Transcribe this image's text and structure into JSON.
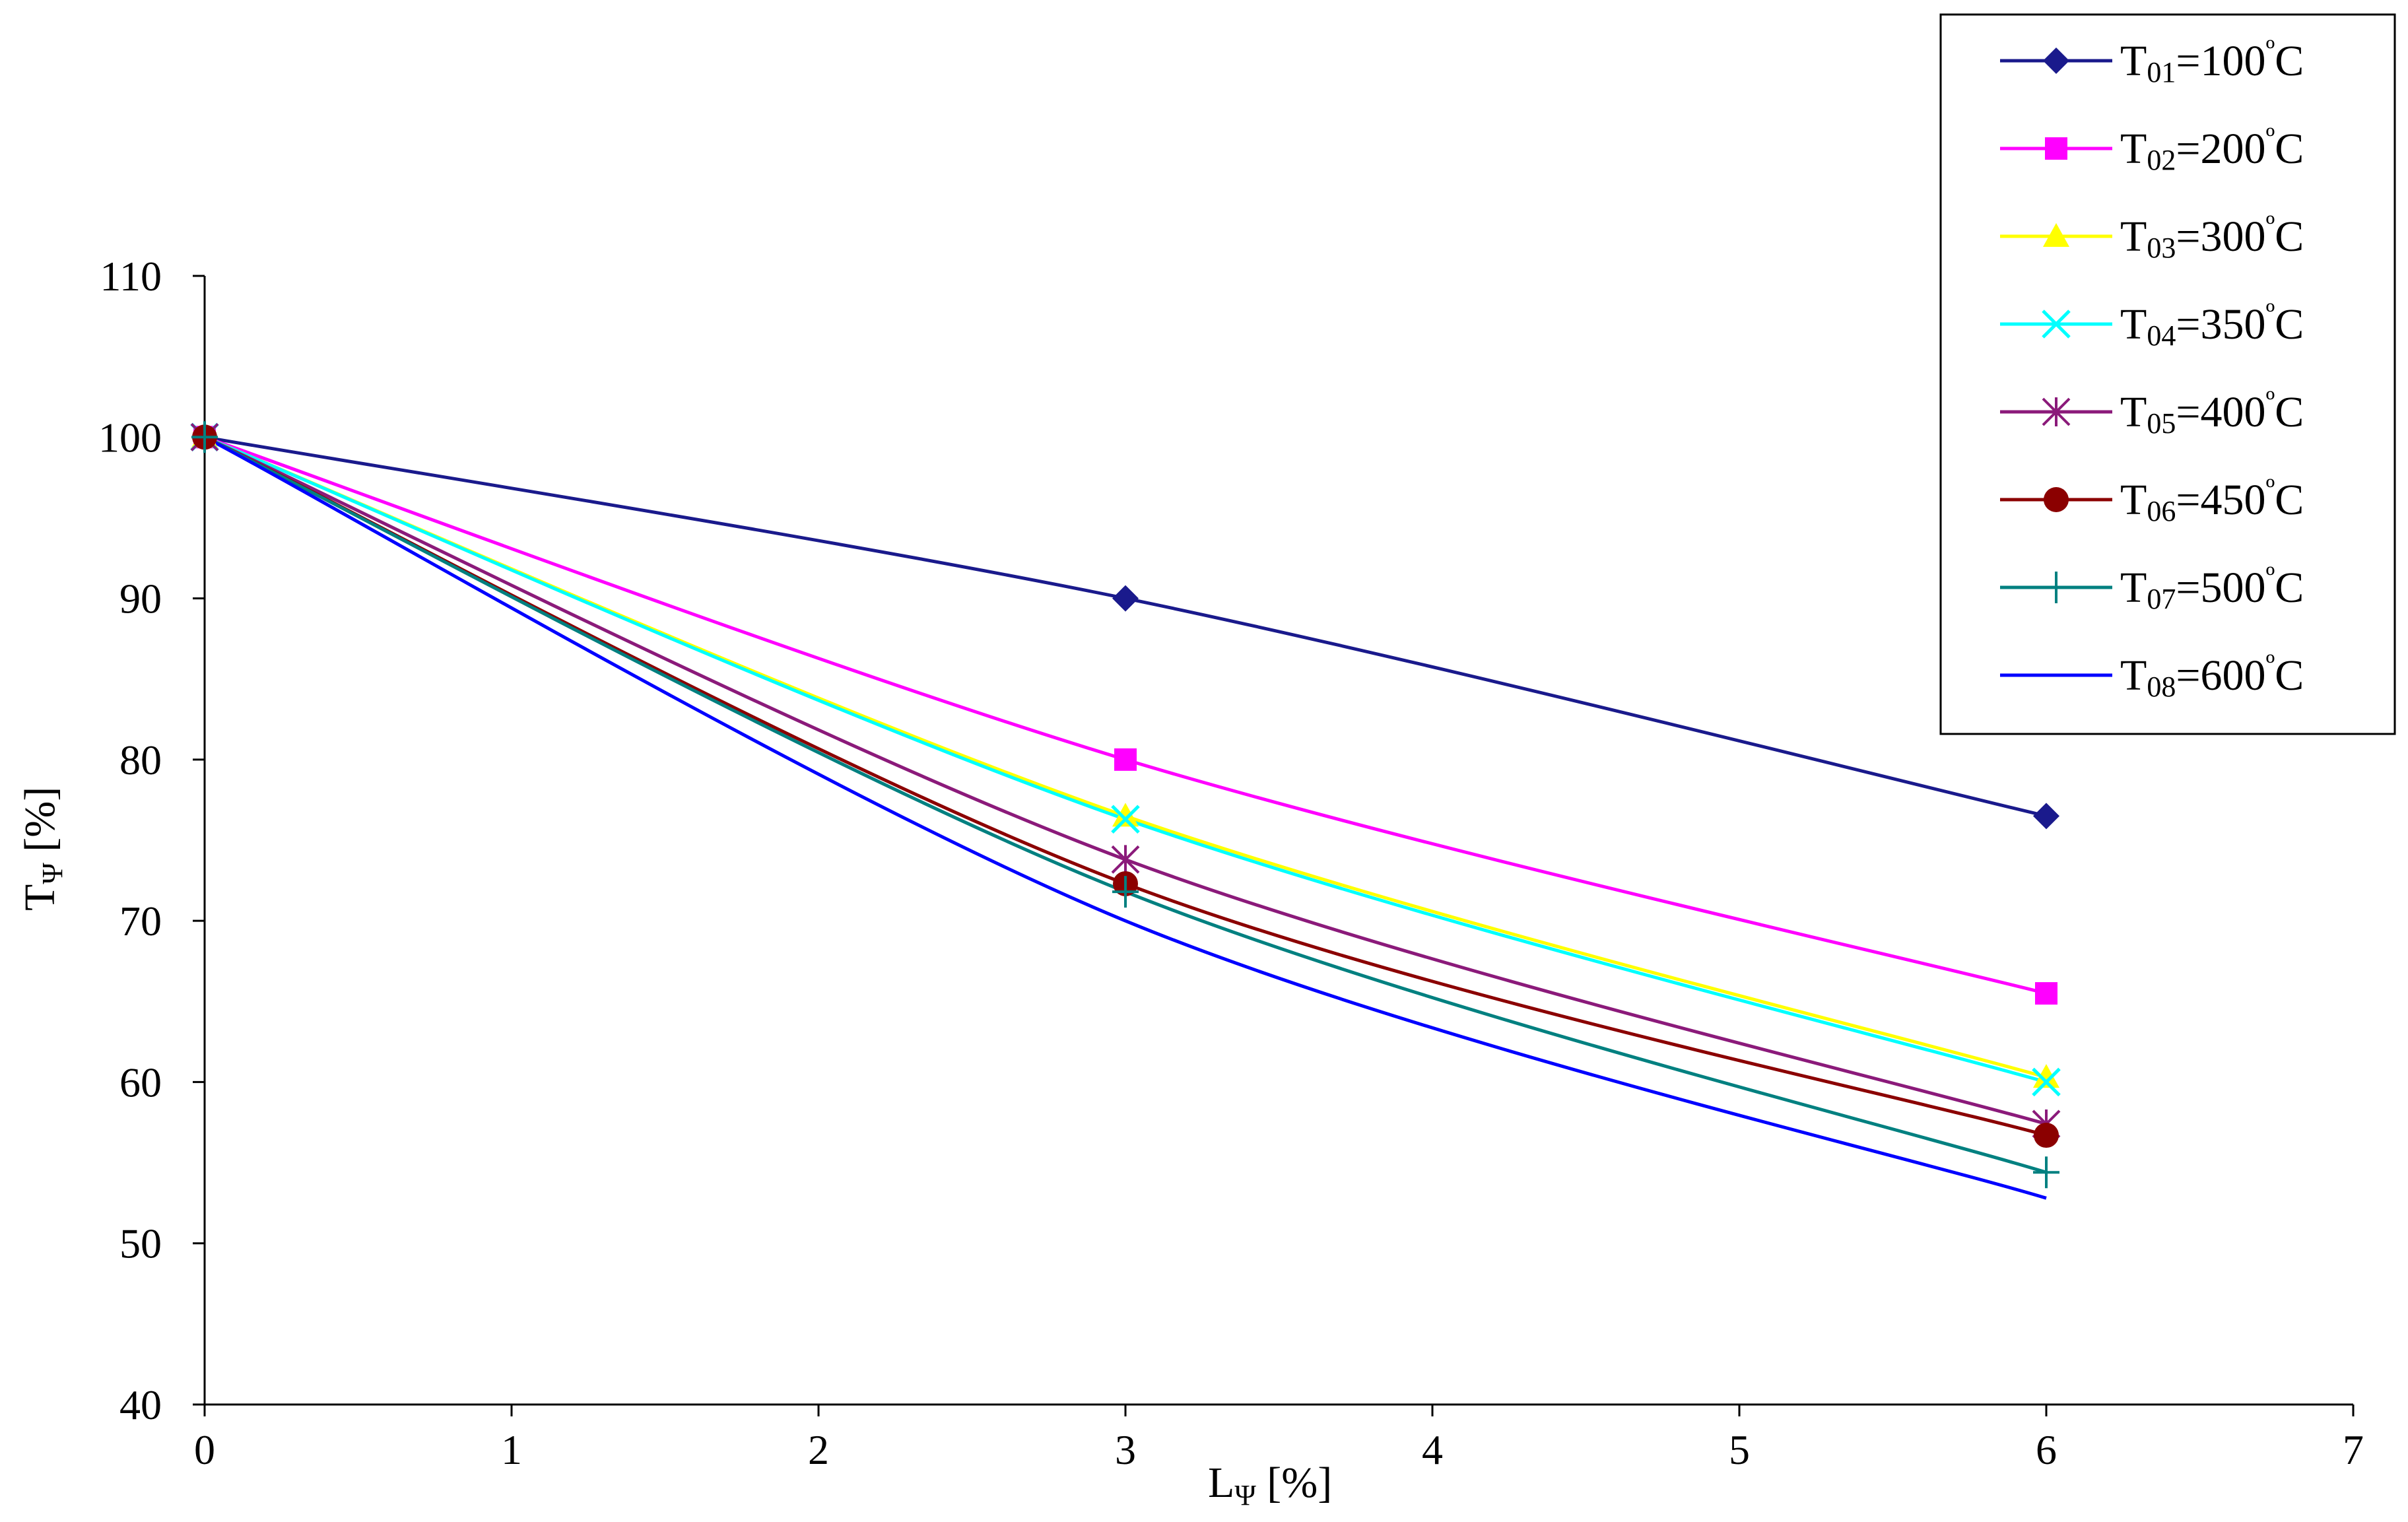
{
  "chart_data": {
    "type": "line",
    "title": "",
    "xlabel": {
      "main": "L",
      "sub": "Ψ",
      "rest": " [%]"
    },
    "ylabel": {
      "main": "T",
      "sub": "Ψ",
      "rest": " [%]"
    },
    "xlim": [
      0,
      7
    ],
    "ylim": [
      40,
      110
    ],
    "x_ticks": [
      0,
      1,
      2,
      3,
      4,
      5,
      6,
      7
    ],
    "y_ticks": [
      40,
      50,
      60,
      70,
      80,
      90,
      100,
      110
    ],
    "grid": false,
    "legend_position": "top-right",
    "x": [
      0,
      3,
      6
    ],
    "series": [
      {
        "name": "T01=100ºC",
        "label_main": "T",
        "label_sub": "01",
        "label_value": "=100",
        "label_deg": "º",
        "label_unit": "C",
        "color": "#1a1a8c",
        "marker": "diamond",
        "values": [
          100,
          90,
          76.5
        ]
      },
      {
        "name": "T02=200ºC",
        "label_main": "T",
        "label_sub": "02",
        "label_value": "=200",
        "label_deg": "º",
        "label_unit": "C",
        "color": "#ff00ff",
        "marker": "square",
        "values": [
          100,
          80,
          65.5
        ]
      },
      {
        "name": "T03=300ºC",
        "label_main": "T",
        "label_sub": "03",
        "label_value": "=300",
        "label_deg": "º",
        "label_unit": "C",
        "color": "#ffff00",
        "marker": "triangle",
        "values": [
          100,
          76.5,
          60.3
        ]
      },
      {
        "name": "T04=350ºC",
        "label_main": "T",
        "label_sub": "04",
        "label_value": "=350",
        "label_deg": "º",
        "label_unit": "C",
        "color": "#00ffff",
        "marker": "x",
        "values": [
          100,
          76.3,
          60
        ]
      },
      {
        "name": "T05=400ºC",
        "label_main": "T",
        "label_sub": "05",
        "label_value": "=400",
        "label_deg": "º",
        "label_unit": "C",
        "color": "#8b1a7a",
        "marker": "star",
        "values": [
          100,
          73.8,
          57.4
        ]
      },
      {
        "name": "T06=450ºC",
        "label_main": "T",
        "label_sub": "06",
        "label_value": "=450",
        "label_deg": "º",
        "label_unit": "C",
        "color": "#8b0000",
        "marker": "circle",
        "values": [
          100,
          72.3,
          56.7
        ]
      },
      {
        "name": "T07=500ºC",
        "label_main": "T",
        "label_sub": "07",
        "label_value": "=500",
        "label_deg": "º",
        "label_unit": "C",
        "color": "#008080",
        "marker": "plus",
        "values": [
          100,
          71.8,
          54.4
        ]
      },
      {
        "name": "T08=600ºC",
        "label_main": "T",
        "label_sub": "08",
        "label_value": "=600",
        "label_deg": "º",
        "label_unit": "C",
        "color": "#0000ff",
        "marker": "none",
        "values": [
          100,
          70,
          52.8
        ]
      }
    ]
  }
}
